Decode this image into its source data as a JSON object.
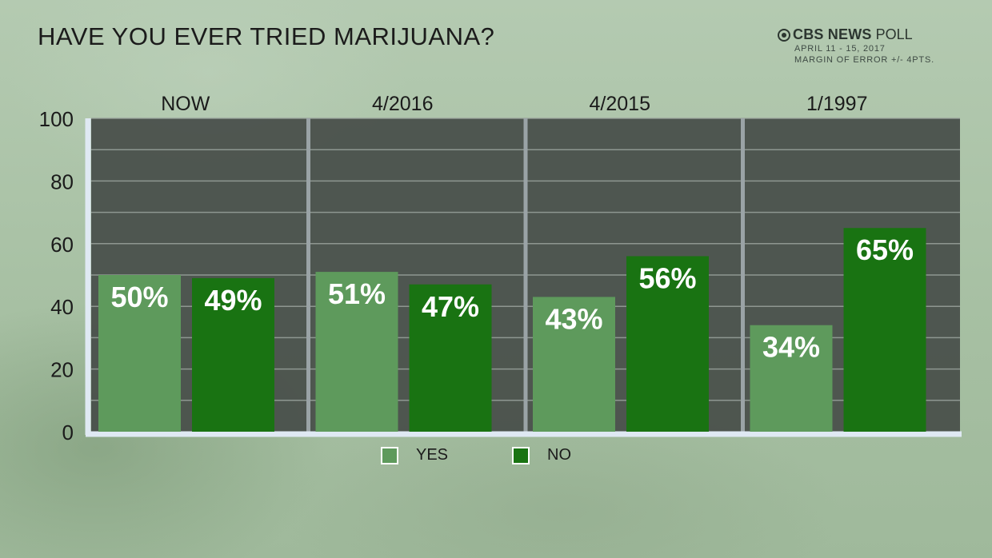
{
  "chart_data": {
    "type": "bar",
    "title": "HAVE YOU EVER TRIED MARIJUANA?",
    "categories": [
      "NOW",
      "4/2016",
      "4/2015",
      "1/1997"
    ],
    "series": [
      {
        "name": "YES",
        "values": [
          50,
          51,
          43,
          34
        ],
        "labels": [
          "50%",
          "51%",
          "43%",
          "34%"
        ],
        "color": "#5e9a5c"
      },
      {
        "name": "NO",
        "values": [
          49,
          47,
          56,
          65
        ],
        "labels": [
          "49%",
          "47%",
          "56%",
          "65%"
        ],
        "color": "#197312"
      }
    ],
    "ylim": [
      0,
      100
    ],
    "yticks": [
      0,
      20,
      40,
      60,
      80,
      100
    ],
    "ytick_labels": [
      "0",
      "20",
      "40",
      "60",
      "80",
      "100"
    ],
    "grid": true,
    "legend_position": "bottom-center",
    "colors": {
      "plot_background": "#474d49",
      "gridline": "#9aa39d",
      "axis": "#dfe9f3"
    }
  },
  "source": {
    "name": "CBS NEWS",
    "poll": "POLL",
    "dates": "APRIL 11 - 15, 2017",
    "margin": "MARGIN OF ERROR +/- 4PTS.",
    "icon": "cbs-eye-icon"
  }
}
